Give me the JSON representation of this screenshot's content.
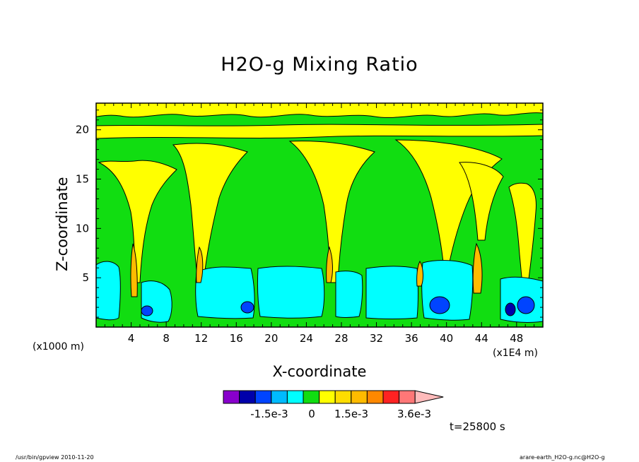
{
  "chart_data": {
    "type": "heatmap",
    "title": "H2O-g Mixing Ratio",
    "xlabel": "X-coordinate",
    "ylabel": "Z-coordinate",
    "x_unit_left": "(x1000 m)",
    "x_unit_right": "(x1E4 m)",
    "x_ticks": [
      "4",
      "8",
      "12",
      "16",
      "20",
      "24",
      "28",
      "32",
      "36",
      "40",
      "44",
      "48"
    ],
    "y_ticks": [
      "5",
      "10",
      "15",
      "20"
    ],
    "xlim": [
      0,
      51
    ],
    "ylim": [
      0,
      22.7
    ],
    "colorbar": {
      "labels": [
        "-1.5e-3",
        "0",
        "1.5e-3",
        "3.6e-3"
      ],
      "colors": [
        "#8800cc",
        "#0000aa",
        "#0044ff",
        "#00bbff",
        "#00ffff",
        "#11dd11",
        "#ffff00",
        "#ffdd00",
        "#ffbb00",
        "#ff8800",
        "#ff2222",
        "#ff7777",
        "#ffbbbb"
      ]
    },
    "time_label": "t=25800 s",
    "grid": false,
    "legend": "colorbar-bottom"
  },
  "footer": {
    "left": "/usr/bin/gpview  2010-11-20",
    "right": "arare-earth_H2O-g.nc@H2O-g"
  }
}
